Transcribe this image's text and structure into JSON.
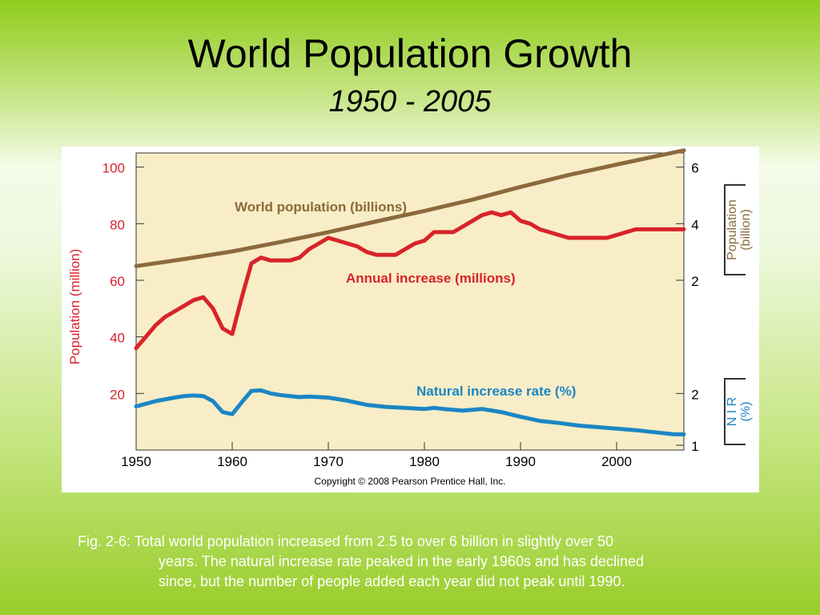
{
  "title": "World Population Growth",
  "subtitle": "1950 - 2005",
  "caption": {
    "line1": "Fig. 2-6: Total world population increased from 2.5 to over 6 billion in slightly over 50",
    "line2": "years. The natural increase rate peaked in the early 1960s and has declined",
    "line3": "since, but the number of people added each year did not peak until 1990."
  },
  "copyright": "Copyright © 2008 Pearson Prentice Hall, Inc.",
  "colors": {
    "population": "#8b6a3c",
    "annual_increase": "#d8232a",
    "natural_increase": "#1b86c4",
    "plot_background": "#f8edc7"
  },
  "chart_data": {
    "type": "line",
    "x_ticks": [
      1950,
      1960,
      1970,
      1980,
      1990,
      2000
    ],
    "xlim": [
      1950,
      2007
    ],
    "left_axis": {
      "label": "Population (million)",
      "ticks": [
        20,
        40,
        60,
        80,
        100
      ],
      "ylim": [
        0,
        105
      ]
    },
    "right_population_axis": {
      "label": "Population (billion)",
      "ticks": [
        2,
        4,
        6
      ],
      "range": [
        1.5,
        6.6
      ]
    },
    "right_nir_axis": {
      "label": "N I R (%)",
      "ticks": [
        1,
        2
      ],
      "range": [
        0.9,
        2.3
      ]
    },
    "series": [
      {
        "name": "World population (billions)",
        "axis": "right_population_axis",
        "x": [
          1950,
          1955,
          1960,
          1965,
          1970,
          1975,
          1980,
          1985,
          1990,
          1995,
          2000,
          2005,
          2007
        ],
        "y": [
          2.5,
          2.75,
          3.02,
          3.35,
          3.7,
          4.08,
          4.45,
          4.85,
          5.3,
          5.72,
          6.09,
          6.45,
          6.59
        ]
      },
      {
        "name": "Annual increase (millions)",
        "axis": "left_axis",
        "x": [
          1950,
          1951,
          1952,
          1953,
          1954,
          1955,
          1956,
          1957,
          1958,
          1959,
          1960,
          1961,
          1962,
          1963,
          1964,
          1965,
          1966,
          1967,
          1968,
          1969,
          1970,
          1971,
          1972,
          1973,
          1974,
          1975,
          1976,
          1977,
          1978,
          1979,
          1980,
          1981,
          1982,
          1983,
          1984,
          1985,
          1986,
          1987,
          1988,
          1989,
          1990,
          1991,
          1992,
          1993,
          1994,
          1995,
          1996,
          1997,
          1998,
          1999,
          2000,
          2001,
          2002,
          2003,
          2004,
          2005,
          2006,
          2007
        ],
        "y": [
          36,
          40,
          44,
          47,
          49,
          51,
          53,
          54,
          50,
          43,
          41,
          54,
          66,
          68,
          67,
          67,
          67,
          68,
          71,
          73,
          75,
          74,
          73,
          72,
          70,
          69,
          69,
          69,
          71,
          73,
          74,
          77,
          77,
          77,
          79,
          81,
          83,
          84,
          83,
          84,
          81,
          80,
          78,
          77,
          76,
          75,
          75,
          75,
          75,
          75,
          76,
          77,
          78,
          78,
          78,
          78,
          78,
          78
        ]
      },
      {
        "name": "Natural increase rate (%)",
        "axis": "right_nir_axis",
        "x": [
          1950,
          1952,
          1954,
          1955,
          1956,
          1957,
          1958,
          1959,
          1960,
          1961,
          1962,
          1963,
          1964,
          1965,
          1966,
          1967,
          1968,
          1969,
          1970,
          1972,
          1974,
          1976,
          1978,
          1980,
          1981,
          1982,
          1984,
          1986,
          1988,
          1990,
          1992,
          1994,
          1996,
          1998,
          2000,
          2002,
          2004,
          2006,
          2007
        ],
        "y": [
          1.75,
          1.85,
          1.92,
          1.95,
          1.96,
          1.95,
          1.85,
          1.64,
          1.6,
          1.83,
          2.05,
          2.06,
          2.0,
          1.97,
          1.95,
          1.93,
          1.94,
          1.93,
          1.92,
          1.86,
          1.78,
          1.74,
          1.72,
          1.7,
          1.72,
          1.7,
          1.67,
          1.7,
          1.64,
          1.55,
          1.47,
          1.43,
          1.38,
          1.35,
          1.32,
          1.29,
          1.25,
          1.21,
          1.21
        ]
      }
    ]
  }
}
